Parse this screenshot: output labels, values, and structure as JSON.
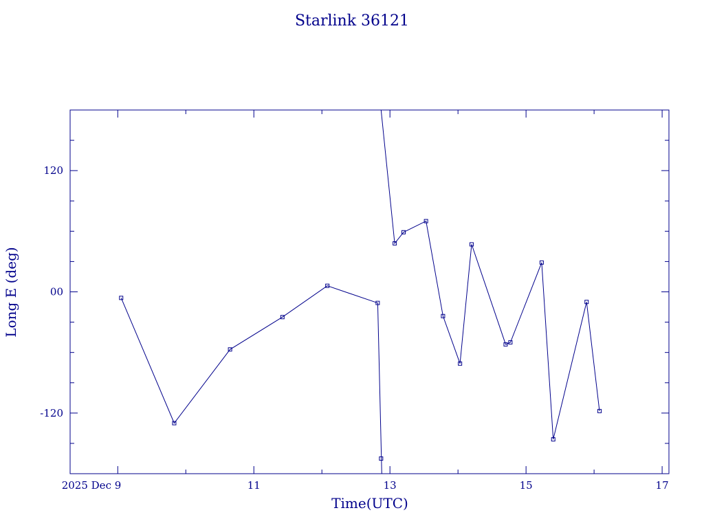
{
  "chart_data": {
    "type": "line",
    "title": "Starlink 36121",
    "xlabel": "Time(UTC)",
    "ylabel": "Long E (deg)",
    "x_unit": "days of 2025 December (UTC)",
    "xlim": [
      8.3,
      17.1
    ],
    "ylim": [
      -180,
      180
    ],
    "x_ticks": [
      {
        "value": 9,
        "label": "2025 Dec  9"
      },
      {
        "value": 11,
        "label": "11"
      },
      {
        "value": 13,
        "label": "13"
      },
      {
        "value": 15,
        "label": "15"
      },
      {
        "value": 17,
        "label": "17"
      }
    ],
    "y_ticks": [
      {
        "value": 120,
        "label": "120"
      },
      {
        "value": 0,
        "label": "00"
      },
      {
        "value": -120,
        "label": "-120"
      }
    ],
    "segments": [
      {
        "points": [
          [
            9.05,
            -6
          ],
          [
            9.83,
            -130
          ],
          [
            10.65,
            -57
          ],
          [
            11.42,
            -25
          ],
          [
            12.08,
            6
          ],
          [
            12.82,
            -11
          ],
          [
            12.88,
            -180
          ]
        ]
      },
      {
        "points": [
          [
            12.87,
            180
          ],
          [
            13.07,
            48
          ],
          [
            13.2,
            59
          ],
          [
            13.53,
            70
          ],
          [
            13.78,
            -24
          ],
          [
            14.03,
            -71
          ],
          [
            14.2,
            47
          ],
          [
            14.7,
            -52
          ],
          [
            14.77,
            -50
          ],
          [
            15.23,
            29
          ],
          [
            15.4,
            -146
          ],
          [
            15.89,
            -10
          ],
          [
            16.08,
            -118
          ]
        ]
      }
    ],
    "markers": [
      [
        9.05,
        -6
      ],
      [
        9.83,
        -130
      ],
      [
        10.65,
        -57
      ],
      [
        11.42,
        -25
      ],
      [
        12.08,
        6
      ],
      [
        12.82,
        -11
      ],
      [
        12.87,
        -165
      ],
      [
        13.07,
        48
      ],
      [
        13.2,
        59
      ],
      [
        13.53,
        70
      ],
      [
        13.78,
        -24
      ],
      [
        14.03,
        -71
      ],
      [
        14.2,
        47
      ],
      [
        14.7,
        -52
      ],
      [
        14.77,
        -50
      ],
      [
        15.23,
        29
      ],
      [
        15.4,
        -146
      ],
      [
        15.89,
        -10
      ],
      [
        16.08,
        -118
      ]
    ],
    "colors": {
      "line": "#00008b",
      "axes": "#00008b",
      "text": "#00008b"
    },
    "grid": false,
    "legend": "none"
  }
}
